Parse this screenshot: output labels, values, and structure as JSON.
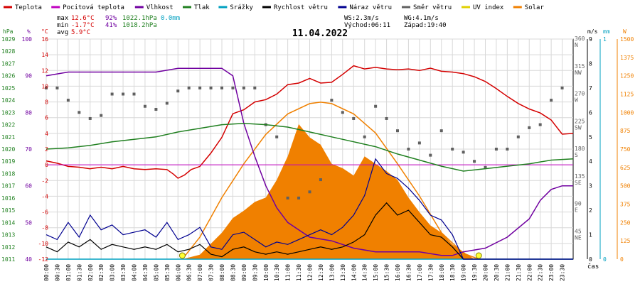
{
  "title": "11.04.2022",
  "legend": [
    {
      "label": "Teplota",
      "color": "#d40000"
    },
    {
      "label": "Pocitová teplota",
      "color": "#c000c0"
    },
    {
      "label": "Vlhkost",
      "color": "#7000a0"
    },
    {
      "label": "Tlak",
      "color": "#208020"
    },
    {
      "label": "Srážky",
      "color": "#00a0c0"
    },
    {
      "label": "Rychlost větru",
      "color": "#000000"
    },
    {
      "label": "Náraz větru",
      "color": "#000090"
    },
    {
      "label": "Směr větru",
      "color": "#606060"
    },
    {
      "label": "UV index",
      "color": "#e0d000"
    },
    {
      "label": "Solar",
      "color": "#f08000"
    }
  ],
  "stats": {
    "max_label": "max",
    "max_temp": "12.6°C",
    "max_hum": "92%",
    "max_press": "1022.1hPa",
    "max_rain": "0.0mm",
    "min_label": "min",
    "min_temp": "-1.7°C",
    "min_hum": "41%",
    "min_press": "1018.2hPa",
    "avg_label": "avg",
    "avg_temp": "5.9°C",
    "ws": "WS:2.3m/s",
    "wg": "WG:4.1m/s",
    "sunrise": "Východ:06:11",
    "sunset": "Západ:19:40"
  },
  "axis_units": {
    "hpa": "hPa",
    "pct": "%",
    "degc": "°C",
    "ms": "m/s",
    "mm": "mm",
    "w": "W"
  },
  "xlabel": "čas",
  "colors": {
    "temp": "#d40000",
    "feels": "#c000c0",
    "humidity": "#7000a0",
    "pressure": "#208020",
    "rain": "#00a0c0",
    "wind": "#000000",
    "gust": "#000090",
    "dir": "#606060",
    "uv": "#e0d000",
    "solar": "#f08000",
    "grid": "#d8d8d8"
  },
  "chart_data": {
    "type": "line",
    "date": "11.04.2022",
    "x_unit": "hour of day",
    "xlim": [
      0,
      24
    ],
    "x_tick_labels": [
      "00:00",
      "00:30",
      "01:00",
      "01:30",
      "02:00",
      "02:30",
      "03:00",
      "03:30",
      "04:00",
      "04:30",
      "05:00",
      "05:30",
      "06:00",
      "06:30",
      "07:00",
      "07:30",
      "08:00",
      "08:30",
      "09:00",
      "09:30",
      "10:00",
      "10:30",
      "11:00",
      "11:30",
      "12:00",
      "12:30",
      "13:00",
      "13:30",
      "14:00",
      "14:30",
      "15:00",
      "15:30",
      "16:00",
      "16:30",
      "17:00",
      "17:30",
      "18:00",
      "18:30",
      "19:00",
      "19:30",
      "20:00",
      "20:30",
      "21:00",
      "21:30",
      "22:00",
      "22:30",
      "23:00",
      "23:30"
    ],
    "y_axes": {
      "pressure_hpa": {
        "range": [
          1011,
          1029
        ],
        "ticks": [
          1011,
          1012,
          1013,
          1014,
          1015,
          1016,
          1017,
          1018,
          1019,
          1020,
          1021,
          1022,
          1023,
          1024,
          1025,
          1026,
          1027,
          1028,
          1029
        ]
      },
      "humidity_pct": {
        "range": [
          40,
          100
        ],
        "ticks": [
          40,
          50,
          60,
          70,
          80,
          90,
          100
        ]
      },
      "temperature_c": {
        "range": [
          -12,
          16
        ],
        "ticks": [
          -12,
          -10,
          -8,
          -6,
          -4,
          -2,
          0,
          2,
          4,
          6,
          8,
          10,
          12,
          14,
          16
        ]
      },
      "wind_dir_deg": {
        "range": [
          0,
          360
        ],
        "ticks": [
          45,
          90,
          135,
          180,
          225,
          270,
          315,
          360
        ],
        "tick_labels": [
          "NE",
          "E",
          "SE",
          "S",
          "SW",
          "W",
          "NW",
          "N"
        ]
      },
      "wind_ms": {
        "range": [
          0,
          9
        ],
        "ticks": [
          0,
          1,
          2,
          3,
          4,
          5,
          6,
          7,
          8,
          9
        ]
      },
      "rain_mm": {
        "range": [
          0,
          1
        ],
        "ticks": [
          0,
          1
        ]
      },
      "solar_w": {
        "range": [
          0,
          1500
        ],
        "ticks": [
          0,
          125,
          250,
          375,
          500,
          625,
          750,
          875,
          1000,
          1125,
          1250,
          1375,
          1500
        ]
      }
    },
    "series": [
      {
        "name": "Teplota",
        "axis": "temperature_c",
        "x": [
          0,
          0.5,
          1,
          1.5,
          2,
          2.5,
          3,
          3.5,
          4,
          4.5,
          5,
          5.5,
          5.8,
          6,
          6.3,
          6.6,
          7,
          7.5,
          8,
          8.5,
          9,
          9.5,
          10,
          10.5,
          11,
          11.5,
          12,
          12.5,
          13,
          13.5,
          14,
          14.5,
          15,
          15.5,
          16,
          16.5,
          17,
          17.5,
          18,
          18.5,
          19,
          19.5,
          20,
          20.5,
          21,
          21.5,
          22,
          22.5,
          23,
          23.5,
          24
        ],
        "y": [
          0.5,
          0.2,
          -0.2,
          -0.3,
          -0.5,
          -0.3,
          -0.5,
          -0.2,
          -0.5,
          -0.6,
          -0.5,
          -0.6,
          -1.2,
          -1.7,
          -1.3,
          -0.6,
          -0.2,
          1.5,
          3.5,
          6.5,
          7.0,
          8.0,
          8.3,
          9.0,
          10.2,
          10.4,
          11.0,
          10.4,
          10.5,
          11.5,
          12.6,
          12.2,
          12.4,
          12.2,
          12.1,
          12.2,
          12.0,
          12.3,
          11.9,
          11.8,
          11.6,
          11.2,
          10.6,
          9.7,
          8.7,
          7.8,
          7.1,
          6.6,
          5.7,
          3.9,
          4.0
        ]
      },
      {
        "name": "Pocitová teplota",
        "axis": "temperature_c",
        "x": [
          0,
          24
        ],
        "y": [
          0,
          0
        ]
      },
      {
        "name": "Vlhkost",
        "axis": "humidity_pct",
        "x": [
          0,
          1,
          2,
          3,
          4,
          5,
          6,
          7,
          8,
          8.5,
          9,
          9.5,
          10,
          10.5,
          11,
          11.5,
          12,
          13,
          14,
          15,
          16,
          17,
          18,
          18.5,
          19,
          20,
          21,
          22,
          22.5,
          23,
          23.5,
          24
        ],
        "y": [
          90,
          91,
          91,
          91,
          91,
          91,
          92,
          92,
          92,
          90,
          77,
          68,
          60,
          54,
          50,
          48,
          46,
          45,
          43,
          42,
          42,
          42,
          41,
          41,
          42,
          43,
          46,
          51,
          56,
          59,
          60,
          60
        ]
      },
      {
        "name": "Tlak",
        "axis": "pressure_hpa",
        "x": [
          0,
          1,
          2,
          3,
          4,
          5,
          6,
          7,
          8,
          9,
          10,
          11,
          12,
          13,
          14,
          15,
          16,
          17,
          18,
          19,
          20,
          21,
          22,
          23,
          24
        ],
        "y": [
          1020.0,
          1020.1,
          1020.3,
          1020.6,
          1020.8,
          1021.0,
          1021.4,
          1021.7,
          1022.0,
          1022.1,
          1022.0,
          1021.8,
          1021.4,
          1021.0,
          1020.6,
          1020.2,
          1019.6,
          1019.1,
          1018.6,
          1018.2,
          1018.4,
          1018.6,
          1018.8,
          1019.1,
          1019.2
        ]
      },
      {
        "name": "Srážky",
        "axis": "rain_mm",
        "x": [
          0,
          24
        ],
        "y": [
          0,
          0
        ]
      },
      {
        "name": "Rychlost větru",
        "axis": "wind_ms",
        "x": [
          0,
          0.5,
          1,
          1.5,
          2,
          2.5,
          3,
          3.5,
          4,
          4.5,
          5,
          5.5,
          6,
          6.5,
          7,
          7.5,
          8,
          8.5,
          9,
          9.5,
          10,
          10.5,
          11,
          11.5,
          12,
          12.5,
          13,
          13.5,
          14,
          14.5,
          15,
          15.5,
          16,
          16.5,
          17,
          17.5,
          18,
          18.5,
          19,
          19.5,
          20,
          21,
          22,
          23,
          24
        ],
        "y": [
          0.5,
          0.3,
          0.7,
          0.5,
          0.8,
          0.4,
          0.6,
          0.5,
          0.4,
          0.5,
          0.4,
          0.6,
          0.3,
          0.4,
          0.6,
          0.2,
          0.1,
          0.4,
          0.5,
          0.3,
          0.2,
          0.3,
          0.2,
          0.3,
          0.4,
          0.5,
          0.4,
          0.5,
          0.7,
          1.0,
          1.8,
          2.3,
          1.8,
          2.0,
          1.5,
          1.0,
          0.9,
          0.5,
          0,
          0,
          0,
          0,
          0,
          0,
          0
        ]
      },
      {
        "name": "Náraz větru",
        "axis": "wind_ms",
        "x": [
          0,
          0.5,
          1,
          1.5,
          2,
          2.5,
          3,
          3.5,
          4,
          4.5,
          5,
          5.5,
          6,
          6.5,
          7,
          7.5,
          8,
          8.5,
          9,
          9.5,
          10,
          10.5,
          11,
          11.5,
          12,
          12.5,
          13,
          13.5,
          14,
          14.5,
          15,
          15.5,
          16,
          16.5,
          17,
          17.5,
          18,
          18.5,
          19,
          19.5,
          20,
          21,
          22,
          23,
          24
        ],
        "y": [
          1.0,
          0.8,
          1.5,
          0.9,
          1.8,
          1.2,
          1.4,
          1.0,
          1.1,
          1.2,
          0.9,
          1.5,
          0.8,
          1.0,
          1.3,
          0.5,
          0.4,
          1.0,
          1.1,
          0.8,
          0.5,
          0.7,
          0.6,
          0.8,
          1.0,
          1.2,
          1.0,
          1.3,
          1.8,
          2.6,
          4.1,
          3.5,
          3.3,
          2.9,
          2.4,
          1.8,
          1.6,
          1.0,
          0,
          0,
          0,
          0,
          0,
          0,
          0
        ]
      },
      {
        "name": "Směr větru",
        "axis": "wind_dir_deg",
        "x": [
          0,
          0.5,
          1,
          1.5,
          2,
          2.5,
          3,
          3.5,
          4,
          4.5,
          5,
          5.5,
          6,
          6.5,
          7,
          7.5,
          8,
          8.5,
          9,
          9.5,
          10,
          10.5,
          11,
          11.5,
          12,
          12.5,
          13,
          13.5,
          14,
          14.5,
          15,
          15.5,
          16,
          16.5,
          17,
          17.5,
          18,
          18.5,
          19,
          19.5,
          20,
          20.5,
          21,
          21.5,
          22,
          22.5,
          23,
          23.5
        ],
        "y": [
          280,
          280,
          260,
          240,
          230,
          235,
          270,
          270,
          270,
          250,
          245,
          255,
          275,
          280,
          280,
          280,
          280,
          280,
          280,
          280,
          220,
          200,
          100,
          100,
          110,
          130,
          260,
          240,
          230,
          200,
          250,
          230,
          210,
          180,
          190,
          170,
          210,
          180,
          175,
          160,
          150,
          180,
          180,
          200,
          215,
          220,
          260,
          280
        ]
      },
      {
        "name": "Solar",
        "axis": "solar_w",
        "x": [
          6.2,
          7,
          8,
          8.5,
          9,
          9.5,
          10,
          10.5,
          11,
          11.5,
          12,
          12.5,
          13,
          13.5,
          14,
          14.5,
          15,
          15.5,
          16,
          16.5,
          17,
          17.5,
          18,
          18.5,
          19,
          19.5
        ],
        "y": [
          0,
          30,
          180,
          280,
          330,
          390,
          420,
          540,
          700,
          920,
          830,
          780,
          650,
          620,
          570,
          700,
          650,
          600,
          540,
          420,
          320,
          230,
          180,
          100,
          50,
          0
        ]
      },
      {
        "name": "Solar max",
        "axis": "solar_w",
        "x": [
          6.2,
          7,
          8,
          9,
          10,
          11,
          12,
          12.5,
          13,
          14,
          15,
          16,
          17,
          18,
          19,
          19.7
        ],
        "y": [
          0,
          150,
          420,
          650,
          850,
          990,
          1060,
          1070,
          1060,
          990,
          860,
          650,
          430,
          180,
          40,
          0
        ]
      }
    ],
    "sun_markers": [
      6.2,
      19.7
    ]
  }
}
